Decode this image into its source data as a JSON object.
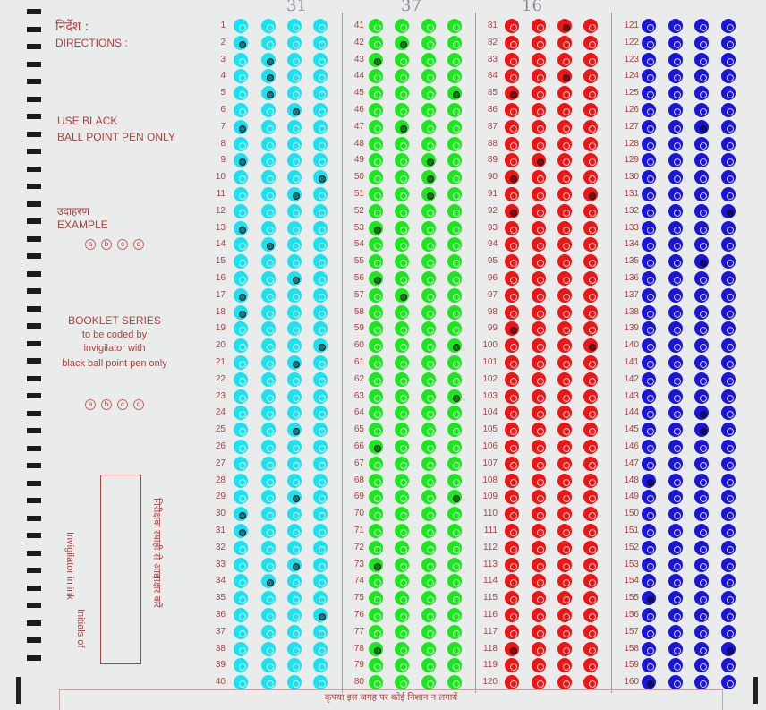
{
  "left_panel": {
    "directions_hindi": "निर्देश :",
    "directions_en": "DIRECTIONS :",
    "pen_line1": "USE BLACK",
    "pen_line2": "BALL POINT PEN ONLY",
    "example_hindi": "उदाहरण",
    "example_en": "EXAMPLE",
    "example_options": [
      "a",
      "b",
      "c",
      "d"
    ],
    "booklet_line1": "BOOKLET SERIES",
    "booklet_line2": "to be coded by",
    "booklet_line3": "invigilator with",
    "booklet_line4": "black ball point pen only",
    "booklet_options": [
      "a",
      "b",
      "c",
      "d"
    ],
    "initials_en_1": "Initials of",
    "initials_en_2": "Invigilator in ink",
    "initials_hindi": "निरीक्षक स्याही से आद्याक्षर करें"
  },
  "footer": {
    "note_hindi": "कृपया इस जगह पर कोई निशान न लगायें"
  },
  "pen_marks": [
    "31",
    "37",
    "16"
  ],
  "colors": {
    "col1": "#19e3f2",
    "col2": "#18e81c",
    "col3": "#f01414",
    "col4": "#1a15dc",
    "label": "#b1403f"
  },
  "sheet": {
    "columns": [
      {
        "start": 1,
        "count": 40,
        "color": "#19e3f2"
      },
      {
        "start": 41,
        "count": 40,
        "color": "#18e81c"
      },
      {
        "start": 81,
        "count": 40,
        "color": "#f01414"
      },
      {
        "start": 121,
        "count": 40,
        "color": "#1a15dc"
      }
    ],
    "marked": {
      "2": 1,
      "3": 2,
      "4": 2,
      "5": 2,
      "6": 3,
      "7": 1,
      "9": 1,
      "10": 4,
      "11": 3,
      "13": 1,
      "14": 2,
      "16": 3,
      "17": 1,
      "18": 1,
      "20": 4,
      "21": 3,
      "25": 3,
      "29": 3,
      "30": 1,
      "31": 1,
      "33": 3,
      "34": 2,
      "36": 4,
      "42": 2,
      "43": 1,
      "45": 4,
      "47": 2,
      "49": 3,
      "50": 3,
      "51": 3,
      "53": 1,
      "56": 1,
      "57": 2,
      "60": 4,
      "63": 4,
      "66": 1,
      "69": 4,
      "73": 1,
      "78": 1,
      "81": 3,
      "84": 3,
      "85": 1,
      "89": 2,
      "90": 1,
      "91": 4,
      "92": 1,
      "99": 1,
      "100": 4,
      "118": 1,
      "127": 3,
      "132": 4,
      "135": 3,
      "144": 3,
      "145": 3,
      "148": 1,
      "155": 1,
      "158": 4,
      "160": 1
    }
  }
}
